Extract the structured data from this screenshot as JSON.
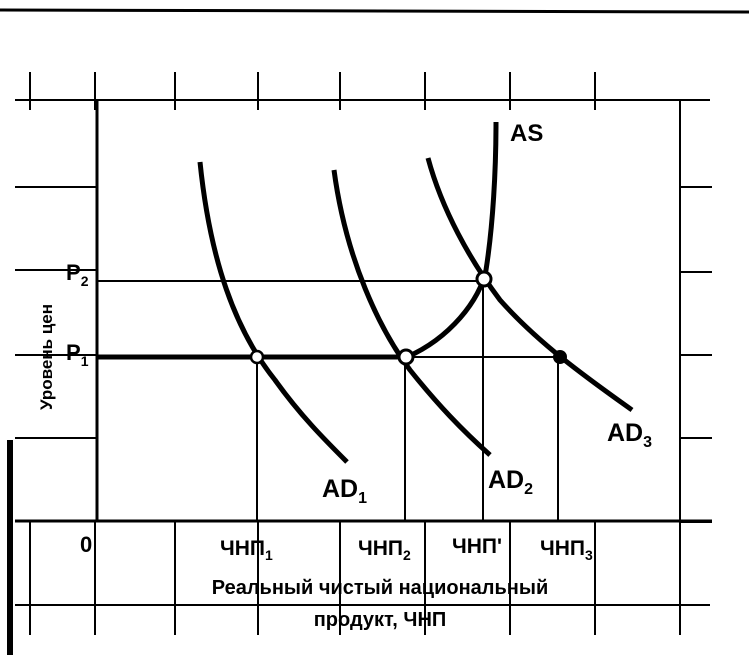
{
  "diagram": {
    "curves": {
      "as_label": "AS",
      "ad1_label": "AD",
      "ad1_sub": "1",
      "ad2_label": "AD",
      "ad2_sub": "2",
      "ad3_label": "AD",
      "ad3_sub": "3"
    },
    "y_axis": {
      "title": "Уровень цен",
      "p1_label": "P",
      "p1_sub": "1",
      "p2_label": "P",
      "p2_sub": "2"
    },
    "x_axis": {
      "origin_label": "0",
      "q1_label": "ЧНП",
      "q1_sub": "1",
      "q2_label": "ЧНП",
      "q2_sub": "2",
      "q_prime_label": "ЧНП'",
      "q3_label": "ЧНП",
      "q3_sub": "3",
      "title_line1": "Реальный чистый национальный",
      "title_line2": "продукт, ЧНП"
    }
  }
}
